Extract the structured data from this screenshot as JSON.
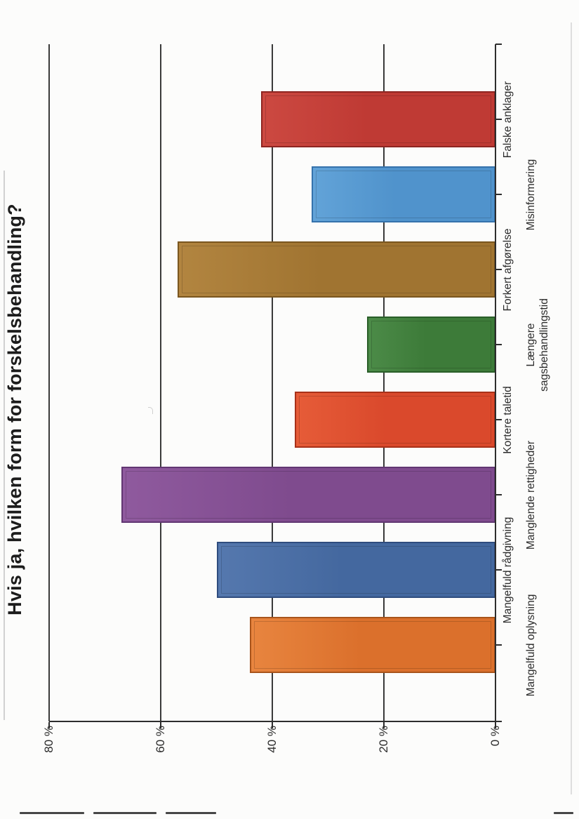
{
  "chart_data": {
    "type": "bar",
    "title": "Hvis ja, hvilken form for forskelsbehandling?",
    "categories": [
      "Mangelfuld oplysning",
      "Mangelfuld rådgivning",
      "Manglende rettigheder",
      "Kortere taletid",
      "Længere sagsbehandlingstid",
      "Forkert afgørelse",
      "Misinformering",
      "Falske anklager"
    ],
    "category_label_lines": [
      [
        "Mangelfuld oplysning"
      ],
      [
        "Mangelfuld rådgivning"
      ],
      [
        "Manglende rettigheder"
      ],
      [
        "Kortere taletid"
      ],
      [
        "Længere",
        "sagsbehandlingstid"
      ],
      [
        "Forkert afgørelse"
      ],
      [
        "Misinformering"
      ],
      [
        "Falske anklager"
      ]
    ],
    "values": [
      44,
      50,
      67,
      36,
      23,
      57,
      33,
      42
    ],
    "unit": "%",
    "bar_colors": [
      {
        "base": "#DB702C",
        "light": "#E8853F",
        "border": "#A8541B"
      },
      {
        "base": "#44689F",
        "light": "#5578AE",
        "border": "#2F4C7E"
      },
      {
        "base": "#7F4B8E",
        "light": "#8F5A9E",
        "border": "#613672"
      },
      {
        "base": "#DA492C",
        "light": "#E65C38",
        "border": "#A83119"
      },
      {
        "base": "#3D7B39",
        "light": "#4C8B48",
        "border": "#295E28"
      },
      {
        "base": "#A07431",
        "light": "#B28540",
        "border": "#7A561F"
      },
      {
        "base": "#5093CC",
        "light": "#62A3D8",
        "border": "#3572AC"
      },
      {
        "base": "#BF3A34",
        "light": "#CC4941",
        "border": "#8E2521"
      }
    ],
    "yticks": [
      0,
      20,
      40,
      60,
      80
    ],
    "ytick_labels": [
      "0 %",
      "20 %",
      "40 %",
      "60 %",
      "80 %"
    ],
    "ylim": [
      0,
      80
    ],
    "xlabel": "",
    "ylabel": "",
    "grid": true,
    "legend": false,
    "page_rotation_deg": -90
  }
}
